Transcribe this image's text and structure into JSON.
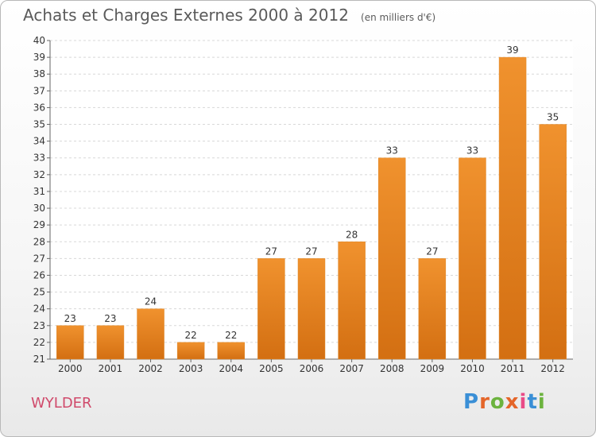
{
  "chart_data": {
    "type": "bar",
    "title": "Achats et Charges Externes 2000 à 2012",
    "subtitle": "(en milliers d'€)",
    "categories": [
      "2000",
      "2001",
      "2002",
      "2003",
      "2004",
      "2005",
      "2006",
      "2007",
      "2008",
      "2009",
      "2010",
      "2011",
      "2012"
    ],
    "values": [
      23,
      23,
      24,
      22,
      22,
      27,
      27,
      28,
      33,
      27,
      33,
      39,
      35
    ],
    "ylim": [
      21,
      40
    ],
    "yticks": [
      21,
      22,
      23,
      24,
      25,
      26,
      27,
      28,
      29,
      30,
      31,
      32,
      33,
      34,
      35,
      36,
      37,
      38,
      39,
      40
    ],
    "grid": true,
    "bar_color": "#f0922e",
    "bar_color_dark": "#d36f12"
  },
  "footer": {
    "commune": "WYLDER",
    "logo_letters": [
      "P",
      "r",
      "o",
      "x",
      "i",
      "t",
      "i"
    ],
    "logo_colors": [
      "#3a8fd6",
      "#e4662a",
      "#6cb33e",
      "#e4662a",
      "#e94b87",
      "#3a8fd6",
      "#6cb33e"
    ]
  }
}
